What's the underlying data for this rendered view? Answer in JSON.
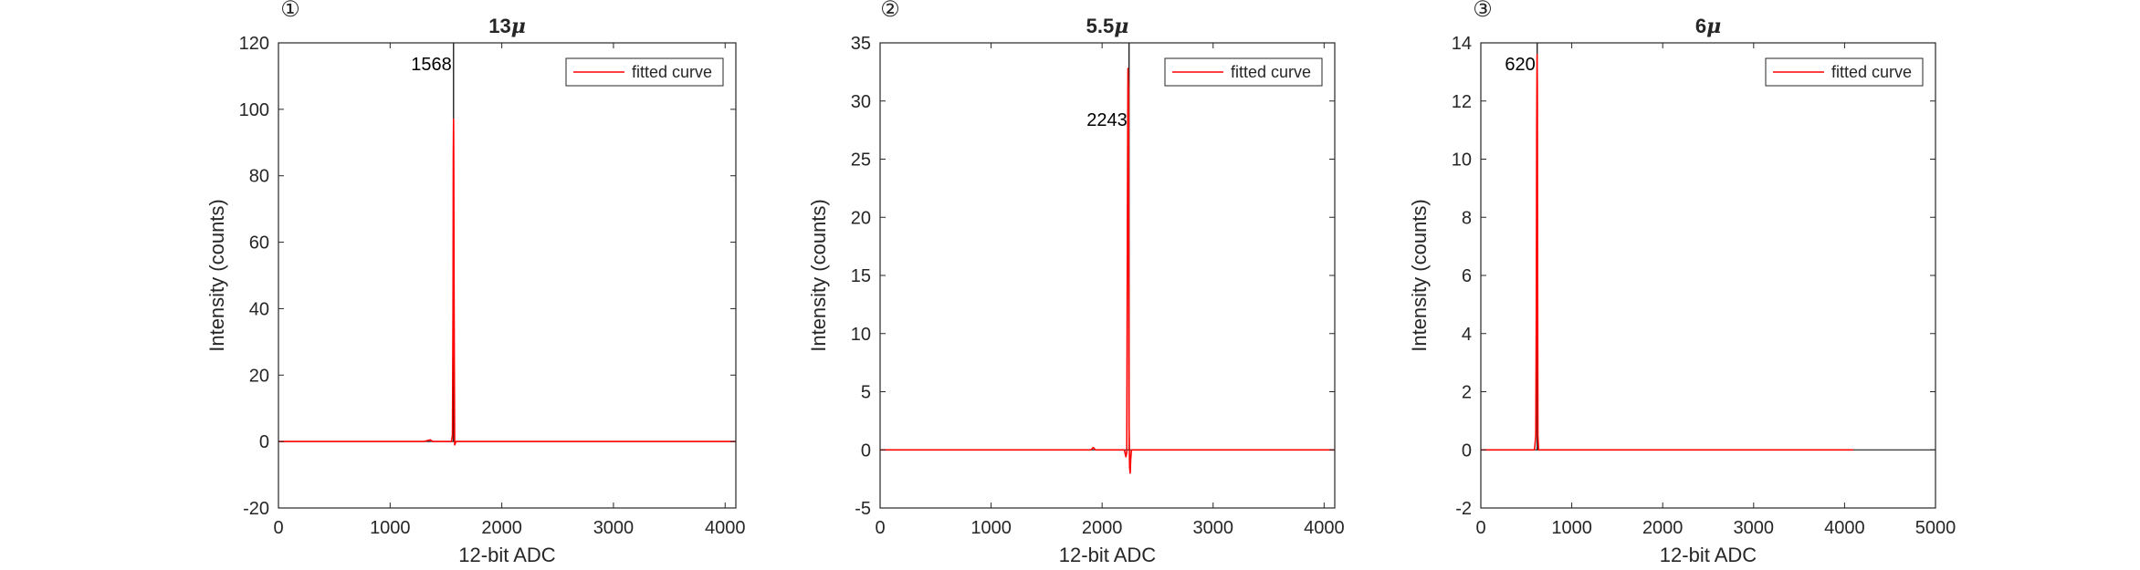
{
  "chart_data": [
    {
      "type": "line",
      "panel_label": "①",
      "title": "13",
      "title_unit": "μ",
      "xlabel": "12-bit ADC",
      "ylabel": "Intensity (counts)",
      "xlim": [
        0,
        4096
      ],
      "ylim": [
        -20,
        120
      ],
      "xticks": [
        0,
        1000,
        2000,
        3000,
        4000
      ],
      "yticks": [
        -20,
        0,
        20,
        40,
        60,
        80,
        100,
        120
      ],
      "xtick_labels": [
        "0",
        "1000",
        "2000",
        "3000",
        "4000"
      ],
      "ytick_labels": [
        "-20",
        "0",
        "20",
        "40",
        "60",
        "80",
        "100",
        "120"
      ],
      "legend": {
        "position": "top-right",
        "entries": [
          "fitted curve"
        ]
      },
      "annotation": {
        "text": "1568",
        "x": 1568
      },
      "marker_line": {
        "x": 1568,
        "color": "#000000"
      },
      "series": [
        {
          "name": "fitted curve",
          "color": "#ff0000",
          "x": [
            0,
            1000,
            1300,
            1360,
            1380,
            1550,
            1558,
            1563,
            1566,
            1568,
            1570,
            1573,
            1578,
            1590,
            2000,
            3000,
            4096
          ],
          "y": [
            0,
            0,
            0,
            0.5,
            0,
            0,
            2,
            40,
            85,
            97,
            85,
            40,
            -1,
            0,
            0,
            0,
            0
          ]
        }
      ]
    },
    {
      "type": "line",
      "panel_label": "②",
      "title": "5.5",
      "title_unit": "μ",
      "xlabel": "12-bit ADC",
      "ylabel": "Intensity (counts)",
      "xlim": [
        0,
        4096
      ],
      "ylim": [
        -5,
        35
      ],
      "xticks": [
        0,
        1000,
        2000,
        3000,
        4000
      ],
      "yticks": [
        -5,
        0,
        5,
        10,
        15,
        20,
        25,
        30,
        35
      ],
      "xtick_labels": [
        "0",
        "1000",
        "2000",
        "3000",
        "4000"
      ],
      "ytick_labels": [
        "-5",
        "0",
        "5",
        "10",
        "15",
        "20",
        "25",
        "30",
        "35"
      ],
      "legend": {
        "position": "top-right",
        "entries": [
          "fitted curve"
        ]
      },
      "annotation": {
        "text": "2243",
        "x": 2243
      },
      "marker_line": {
        "x": 2243,
        "color": "#000000"
      },
      "series": [
        {
          "name": "fitted curve",
          "color": "#ff0000",
          "x": [
            0,
            1000,
            1900,
            1920,
            1940,
            2200,
            2215,
            2222,
            2228,
            2233,
            2238,
            2243,
            2248,
            2253,
            2258,
            2264,
            2275,
            2300,
            3000,
            4096
          ],
          "y": [
            0,
            0,
            0,
            0.2,
            0,
            0,
            -0.6,
            -0.2,
            20,
            32.8,
            31,
            2,
            -1.5,
            -2,
            -0.8,
            0,
            0,
            0,
            0,
            0
          ]
        }
      ]
    },
    {
      "type": "line",
      "panel_label": "③",
      "title": "6",
      "title_unit": "μ",
      "xlabel": "12-bit ADC",
      "ylabel": "Intensity (counts)",
      "xlim": [
        0,
        5000
      ],
      "ylim": [
        -2,
        14
      ],
      "xticks": [
        0,
        1000,
        2000,
        3000,
        4000,
        5000
      ],
      "yticks": [
        -2,
        0,
        2,
        4,
        6,
        8,
        10,
        12,
        14
      ],
      "xtick_labels": [
        "0",
        "1000",
        "2000",
        "3000",
        "4000",
        "5000"
      ],
      "ytick_labels": [
        "-2",
        "0",
        "2",
        "4",
        "6",
        "8",
        "10",
        "12",
        "14"
      ],
      "legend": {
        "position": "top-right",
        "entries": [
          "fitted curve"
        ]
      },
      "annotation": {
        "text": "620",
        "x": 620
      },
      "marker_line": {
        "x": 620,
        "color": "#000000"
      },
      "series": [
        {
          "name": "fitted curve",
          "color": "#ff0000",
          "x": [
            0,
            590,
            604,
            610,
            614,
            618,
            621,
            624,
            628,
            636,
            650,
            1000,
            2000,
            3000,
            4096
          ],
          "y": [
            0,
            0,
            0.5,
            5,
            11,
            13.6,
            12.5,
            6,
            0.5,
            0,
            0,
            0,
            0,
            0,
            0
          ]
        }
      ]
    }
  ]
}
